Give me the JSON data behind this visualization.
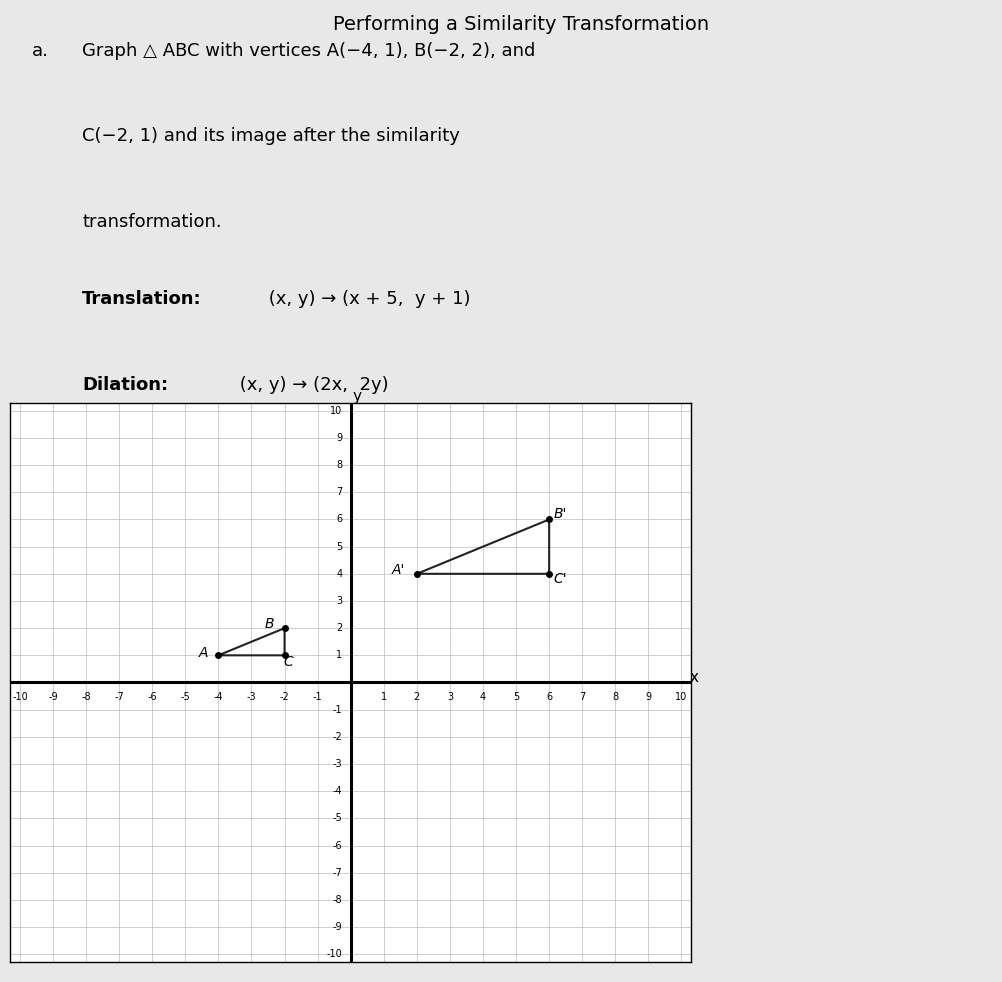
{
  "title_top": "Performing a Similarity Transformation",
  "label_a": "a.",
  "problem_line1": "Graph △ ABC with vertices A(−4, 1), B(−2, 2), and",
  "problem_line2": "C(−2, 1) and its image after the similarity",
  "problem_line3": "transformation.",
  "translation_label": "Translation:",
  "translation_formula": " (x, y) → (x + 5,  y + 1)",
  "dilation_label": "Dilation:",
  "dilation_formula": " (x, y) → (2x,  2y)",
  "original_triangle": {
    "A": [
      -4,
      1
    ],
    "B": [
      -2,
      2
    ],
    "C": [
      -2,
      1
    ]
  },
  "image_triangle": {
    "A_prime": [
      2,
      4
    ],
    "B_prime": [
      6,
      6
    ],
    "C_prime": [
      6,
      4
    ]
  },
  "grid_range": [
    -10,
    10
  ],
  "grid_color": "#bbbbbb",
  "axis_color": "#000000",
  "triangle_color": "#222222",
  "bg_color": "#e8e8e8",
  "box_bg": "#ffffff",
  "tick_fontsize": 7,
  "label_fontsize": 10
}
